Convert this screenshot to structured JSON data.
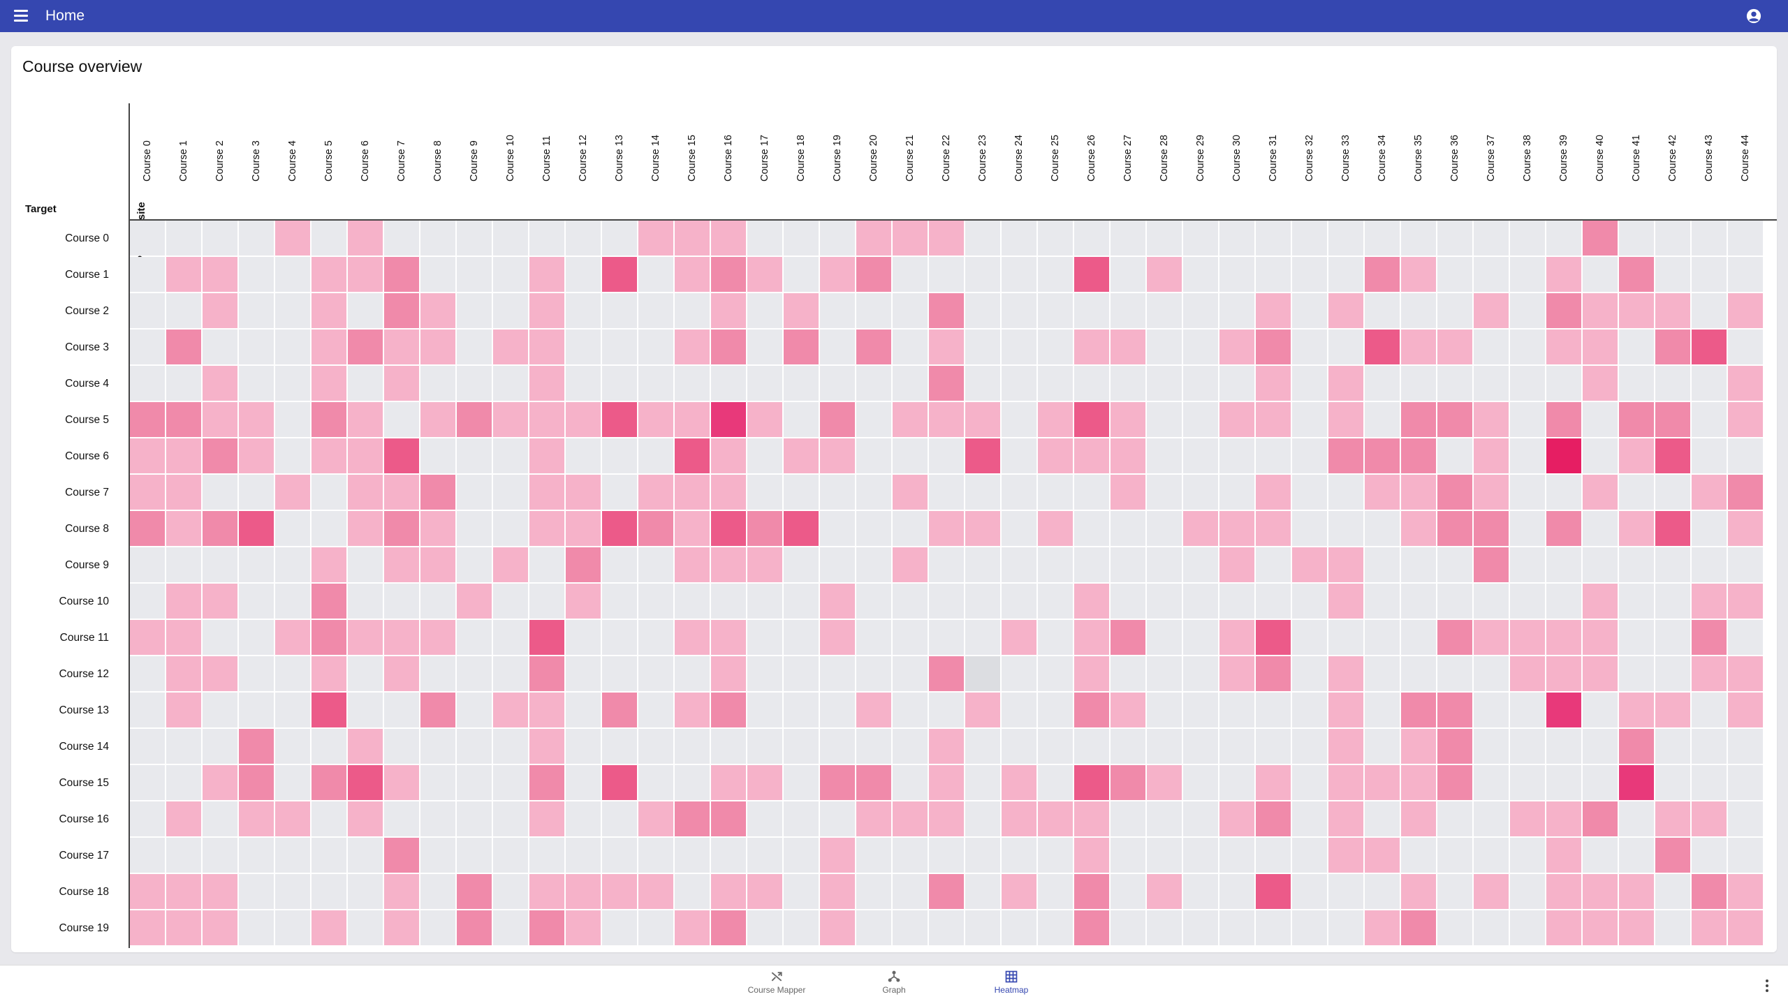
{
  "appbar": {
    "title": "Home"
  },
  "card": {
    "title": "Course overview"
  },
  "chart_data": {
    "type": "heatmap",
    "xlabel": "Prerequisite",
    "ylabel": "Target",
    "columns": [
      "Course 0",
      "Course 1",
      "Course 2",
      "Course 3",
      "Course 4",
      "Course 5",
      "Course 6",
      "Course 7",
      "Course 8",
      "Course 9",
      "Course 10",
      "Course 11",
      "Course 12",
      "Course 13",
      "Course 14",
      "Course 15",
      "Course 16",
      "Course 17",
      "Course 18",
      "Course 19",
      "Course 20",
      "Course 21",
      "Course 22",
      "Course 23",
      "Course 24",
      "Course 25",
      "Course 26",
      "Course 27",
      "Course 28",
      "Course 29",
      "Course 30",
      "Course 31",
      "Course 32",
      "Course 33",
      "Course 34",
      "Course 35",
      "Course 36",
      "Course 37",
      "Course 38",
      "Course 39",
      "Course 40",
      "Course 41",
      "Course 42",
      "Course 43",
      "Course 44"
    ],
    "rows": [
      "Course 0",
      "Course 1",
      "Course 2",
      "Course 3",
      "Course 4",
      "Course 5",
      "Course 6",
      "Course 7",
      "Course 8",
      "Course 9",
      "Course 10",
      "Course 11",
      "Course 12",
      "Course 13",
      "Course 14",
      "Course 15",
      "Course 16",
      "Course 17",
      "Course 18",
      "Course 19"
    ],
    "value_scale": "0 = none, 1 = light, 2 = medium, 3 = strong, 4 = very strong, 5 = strongest",
    "values": [
      [
        0,
        0,
        0,
        0,
        1,
        0,
        1,
        0,
        0,
        0,
        0,
        0,
        0,
        0,
        1,
        1,
        1,
        0,
        0,
        0,
        1,
        1,
        1,
        0,
        0,
        0,
        0,
        0,
        0,
        0,
        0,
        0,
        0,
        0,
        0,
        0,
        0,
        0,
        0,
        0,
        2,
        0,
        0,
        0,
        0
      ],
      [
        0,
        1,
        1,
        0,
        0,
        1,
        1,
        2,
        0,
        0,
        0,
        1,
        0,
        3,
        0,
        1,
        2,
        1,
        0,
        1,
        2,
        0,
        0,
        0,
        0,
        0,
        3,
        0,
        1,
        0,
        0,
        0,
        0,
        0,
        2,
        1,
        0,
        0,
        0,
        1,
        0,
        2,
        0,
        0,
        0
      ],
      [
        0,
        0,
        1,
        0,
        0,
        1,
        0,
        2,
        1,
        0,
        0,
        1,
        0,
        0,
        0,
        0,
        1,
        0,
        1,
        0,
        0,
        0,
        2,
        0,
        0,
        0,
        0,
        0,
        0,
        0,
        0,
        1,
        0,
        1,
        0,
        0,
        0,
        1,
        0,
        2,
        1,
        1,
        1,
        0,
        1
      ],
      [
        0,
        2,
        0,
        0,
        0,
        1,
        2,
        1,
        1,
        0,
        1,
        1,
        0,
        0,
        0,
        1,
        2,
        0,
        2,
        0,
        2,
        0,
        1,
        0,
        0,
        0,
        1,
        1,
        0,
        0,
        1,
        2,
        0,
        0,
        3,
        1,
        1,
        0,
        0,
        1,
        1,
        0,
        2,
        3,
        0
      ],
      [
        0,
        0,
        1,
        0,
        0,
        1,
        0,
        1,
        0,
        0,
        0,
        1,
        0,
        0,
        0,
        0,
        0,
        0,
        0,
        0,
        0,
        0,
        2,
        0,
        0,
        0,
        0,
        0,
        0,
        0,
        0,
        1,
        0,
        1,
        0,
        0,
        0,
        0,
        0,
        0,
        1,
        0,
        0,
        0,
        1
      ],
      [
        2,
        2,
        1,
        1,
        0,
        2,
        1,
        0,
        1,
        2,
        1,
        1,
        1,
        3,
        1,
        1,
        4,
        1,
        0,
        2,
        0,
        1,
        1,
        1,
        0,
        1,
        3,
        1,
        0,
        0,
        1,
        1,
        0,
        1,
        0,
        2,
        2,
        1,
        0,
        2,
        0,
        2,
        2,
        0,
        1
      ],
      [
        1,
        1,
        2,
        1,
        0,
        1,
        1,
        3,
        0,
        0,
        0,
        1,
        0,
        0,
        0,
        3,
        1,
        0,
        1,
        1,
        0,
        0,
        0,
        3,
        0,
        1,
        1,
        1,
        0,
        0,
        0,
        0,
        0,
        2,
        2,
        2,
        0,
        1,
        0,
        5,
        0,
        1,
        3,
        0,
        0
      ],
      [
        1,
        1,
        0,
        0,
        1,
        0,
        1,
        1,
        2,
        0,
        0,
        1,
        1,
        0,
        1,
        1,
        1,
        0,
        0,
        0,
        0,
        1,
        0,
        0,
        0,
        0,
        0,
        1,
        0,
        0,
        0,
        1,
        0,
        0,
        1,
        1,
        2,
        1,
        0,
        0,
        1,
        0,
        0,
        1,
        2
      ],
      [
        2,
        1,
        2,
        3,
        0,
        0,
        1,
        2,
        1,
        0,
        0,
        1,
        1,
        3,
        2,
        1,
        3,
        2,
        3,
        0,
        0,
        0,
        1,
        1,
        0,
        1,
        0,
        0,
        0,
        1,
        1,
        1,
        0,
        0,
        0,
        1,
        2,
        2,
        0,
        2,
        0,
        1,
        3,
        0,
        1
      ],
      [
        0,
        0,
        0,
        0,
        0,
        1,
        0,
        1,
        1,
        0,
        1,
        0,
        2,
        0,
        0,
        1,
        1,
        1,
        0,
        0,
        0,
        1,
        0,
        0,
        0,
        0,
        0,
        0,
        0,
        0,
        1,
        0,
        1,
        1,
        0,
        0,
        0,
        2,
        0,
        0,
        0,
        0,
        0,
        0,
        0
      ],
      [
        0,
        1,
        1,
        0,
        0,
        2,
        0,
        0,
        0,
        1,
        0,
        0,
        1,
        0,
        0,
        0,
        0,
        0,
        0,
        1,
        0,
        0,
        0,
        0,
        0,
        0,
        1,
        0,
        0,
        0,
        0,
        0,
        0,
        1,
        0,
        0,
        0,
        0,
        0,
        0,
        1,
        0,
        0,
        1,
        1
      ],
      [
        1,
        1,
        0,
        0,
        1,
        2,
        1,
        1,
        1,
        0,
        0,
        3,
        0,
        0,
        0,
        1,
        1,
        0,
        0,
        1,
        0,
        0,
        0,
        0,
        1,
        0,
        1,
        2,
        0,
        0,
        1,
        3,
        0,
        0,
        0,
        0,
        2,
        1,
        1,
        1,
        1,
        0,
        0,
        2,
        0
      ],
      [
        0,
        1,
        1,
        0,
        0,
        1,
        0,
        1,
        0,
        0,
        0,
        2,
        0,
        0,
        0,
        0,
        1,
        0,
        0,
        0,
        0,
        0,
        2,
        -1,
        0,
        0,
        1,
        0,
        0,
        0,
        1,
        2,
        0,
        1,
        0,
        0,
        0,
        0,
        1,
        1,
        1,
        0,
        0,
        1,
        1
      ],
      [
        0,
        1,
        0,
        0,
        0,
        3,
        0,
        0,
        2,
        0,
        1,
        1,
        0,
        2,
        0,
        1,
        2,
        0,
        0,
        0,
        1,
        0,
        0,
        1,
        0,
        0,
        2,
        1,
        0,
        0,
        0,
        0,
        0,
        1,
        0,
        2,
        2,
        0,
        0,
        4,
        0,
        1,
        1,
        0,
        1
      ],
      [
        0,
        0,
        0,
        2,
        0,
        0,
        1,
        0,
        0,
        0,
        0,
        1,
        0,
        0,
        0,
        0,
        0,
        0,
        0,
        0,
        0,
        0,
        1,
        0,
        0,
        0,
        0,
        0,
        0,
        0,
        0,
        0,
        0,
        1,
        0,
        1,
        2,
        0,
        0,
        0,
        0,
        2,
        0,
        0,
        0
      ],
      [
        0,
        0,
        1,
        2,
        0,
        2,
        3,
        1,
        0,
        0,
        0,
        2,
        0,
        3,
        0,
        0,
        1,
        1,
        0,
        2,
        2,
        0,
        1,
        0,
        1,
        0,
        3,
        2,
        1,
        0,
        0,
        1,
        0,
        1,
        1,
        1,
        2,
        0,
        0,
        0,
        0,
        4,
        0,
        0,
        0
      ],
      [
        0,
        1,
        0,
        1,
        1,
        0,
        1,
        0,
        0,
        0,
        0,
        1,
        0,
        0,
        1,
        2,
        2,
        0,
        0,
        0,
        1,
        1,
        1,
        0,
        1,
        1,
        1,
        0,
        0,
        0,
        1,
        2,
        0,
        1,
        0,
        1,
        0,
        0,
        1,
        1,
        2,
        0,
        1,
        1,
        0
      ],
      [
        0,
        0,
        0,
        0,
        0,
        0,
        0,
        2,
        0,
        0,
        0,
        0,
        0,
        0,
        0,
        0,
        0,
        0,
        0,
        1,
        0,
        0,
        0,
        0,
        0,
        0,
        1,
        0,
        0,
        0,
        0,
        0,
        0,
        1,
        1,
        0,
        0,
        0,
        0,
        1,
        0,
        0,
        2,
        0,
        0
      ],
      [
        1,
        1,
        1,
        0,
        0,
        0,
        0,
        1,
        0,
        2,
        0,
        1,
        1,
        1,
        1,
        0,
        1,
        1,
        0,
        1,
        0,
        0,
        2,
        0,
        1,
        0,
        2,
        0,
        1,
        0,
        0,
        3,
        0,
        0,
        0,
        1,
        0,
        1,
        0,
        1,
        1,
        1,
        0,
        2,
        1
      ],
      [
        1,
        1,
        1,
        0,
        0,
        1,
        0,
        1,
        0,
        2,
        0,
        2,
        1,
        0,
        0,
        1,
        2,
        0,
        0,
        1,
        0,
        0,
        0,
        0,
        0,
        0,
        2,
        0,
        0,
        0,
        0,
        0,
        0,
        0,
        1,
        2,
        0,
        0,
        0,
        1,
        1,
        1,
        0,
        1,
        1
      ]
    ],
    "colors": {
      "0": "#e8e9ed",
      "1": "#f6b2c9",
      "2": "#f08aaa",
      "3": "#ec5a89",
      "4": "#e8397a",
      "5": "#e61e63",
      "-1": "#dcdde1"
    },
    "grid": true
  },
  "nav": {
    "items": [
      {
        "label": "Course Mapper",
        "icon": "shuffle-icon"
      },
      {
        "label": "Graph",
        "icon": "graph-icon"
      },
      {
        "label": "Heatmap",
        "icon": "grid-icon"
      }
    ],
    "active": "Heatmap"
  },
  "theme": {
    "primary": "#3547b0",
    "surface": "#ffffff",
    "background": "#e8e8ec"
  }
}
